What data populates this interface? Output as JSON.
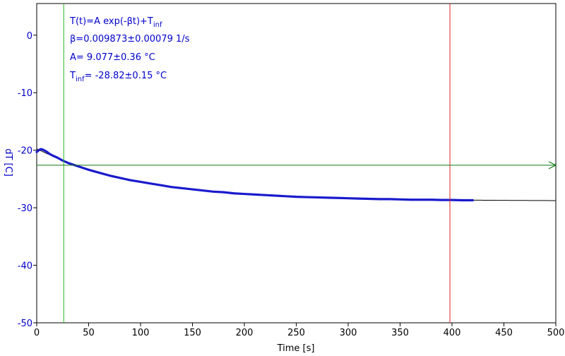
{
  "chart_data": {
    "type": "line",
    "xlabel": "Time [s]",
    "ylabel": "dT [C]",
    "xlim": [
      0,
      500
    ],
    "ylim": [
      -50,
      5.5
    ],
    "xticks": [
      0,
      50,
      100,
      150,
      200,
      250,
      300,
      350,
      400,
      450,
      500
    ],
    "yticks": [
      0,
      -10,
      -20,
      -30,
      -40,
      -50
    ],
    "annotations": {
      "model_prefix": "T(t)=A exp(-βt)+T",
      "model_sub": "inf",
      "beta": "β=0.009873±0.00079 1/s",
      "amplitude": "A= 9.077±0.36 °C",
      "tinf_prefix": "T",
      "tinf_sub": "inf",
      "tinf_value": "= -28.82±0.15 °C"
    },
    "markers": {
      "vertical_green_x": 26,
      "vertical_red_x": 398,
      "horizontal_green_y": -22.6
    },
    "fit": {
      "A": 9.077,
      "beta": 0.009873,
      "T_inf": -28.82,
      "x_start": 0,
      "x_end": 500
    },
    "series": [
      {
        "x": [
          0,
          2,
          4,
          6,
          8,
          10,
          12,
          15,
          20,
          25,
          30,
          40,
          50,
          60,
          70,
          80,
          90,
          100,
          110,
          120,
          130,
          140,
          150,
          160,
          170,
          180,
          190,
          200,
          210,
          220,
          230,
          240,
          250,
          260,
          270,
          280,
          290,
          300,
          310,
          320,
          330,
          340,
          350,
          360,
          370,
          380,
          390,
          400,
          410,
          420
        ],
        "y": [
          -20.3,
          -20.0,
          -19.8,
          -19.9,
          -20.1,
          -20.3,
          -20.6,
          -20.9,
          -21.3,
          -21.8,
          -22.2,
          -22.8,
          -23.4,
          -23.9,
          -24.4,
          -24.8,
          -25.2,
          -25.5,
          -25.8,
          -26.1,
          -26.4,
          -26.6,
          -26.8,
          -27.0,
          -27.2,
          -27.3,
          -27.5,
          -27.6,
          -27.7,
          -27.8,
          -27.9,
          -28.0,
          -28.1,
          -28.15,
          -28.2,
          -28.25,
          -28.3,
          -28.35,
          -28.4,
          -28.45,
          -28.5,
          -28.5,
          -28.55,
          -28.6,
          -28.6,
          -28.6,
          -28.65,
          -28.65,
          -28.7,
          -28.7
        ],
        "color": "#1a1acd"
      }
    ],
    "colors": {
      "axis": "#0000cc",
      "frame": "#000000",
      "data": "#1a1acd",
      "fit": "#000000",
      "green": "#22bb22",
      "red": "#dd2222",
      "arrow_green": "#117711"
    },
    "grid": false
  }
}
